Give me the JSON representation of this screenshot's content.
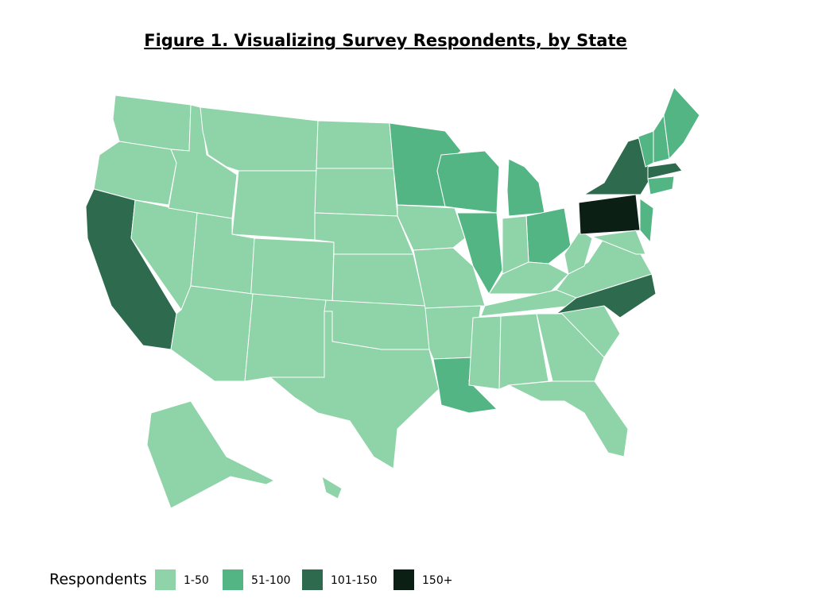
{
  "map": {
    "title": "Figure 1. Visualizing Survey Respondents, by State",
    "legend": {
      "title": "Respondents",
      "classes": [
        {
          "label": "1-50",
          "color": "#8fd3a8"
        },
        {
          "label": "51-100",
          "color": "#52b583"
        },
        {
          "label": "101-150",
          "color": "#2e6b4e"
        },
        {
          "label": "150+",
          "color": "#0b1f14"
        }
      ]
    },
    "states": [
      0,
      0,
      2,
      0,
      0,
      0,
      0,
      0,
      0,
      0,
      0,
      0,
      0,
      0,
      0,
      0,
      0,
      1,
      1,
      0,
      0,
      0,
      1,
      1,
      1,
      0,
      1,
      0,
      0,
      0,
      0,
      0,
      0,
      0,
      2,
      0,
      0,
      3,
      2,
      0,
      1,
      1,
      1,
      1,
      2,
      1,
      0,
      0
    ]
  }
}
